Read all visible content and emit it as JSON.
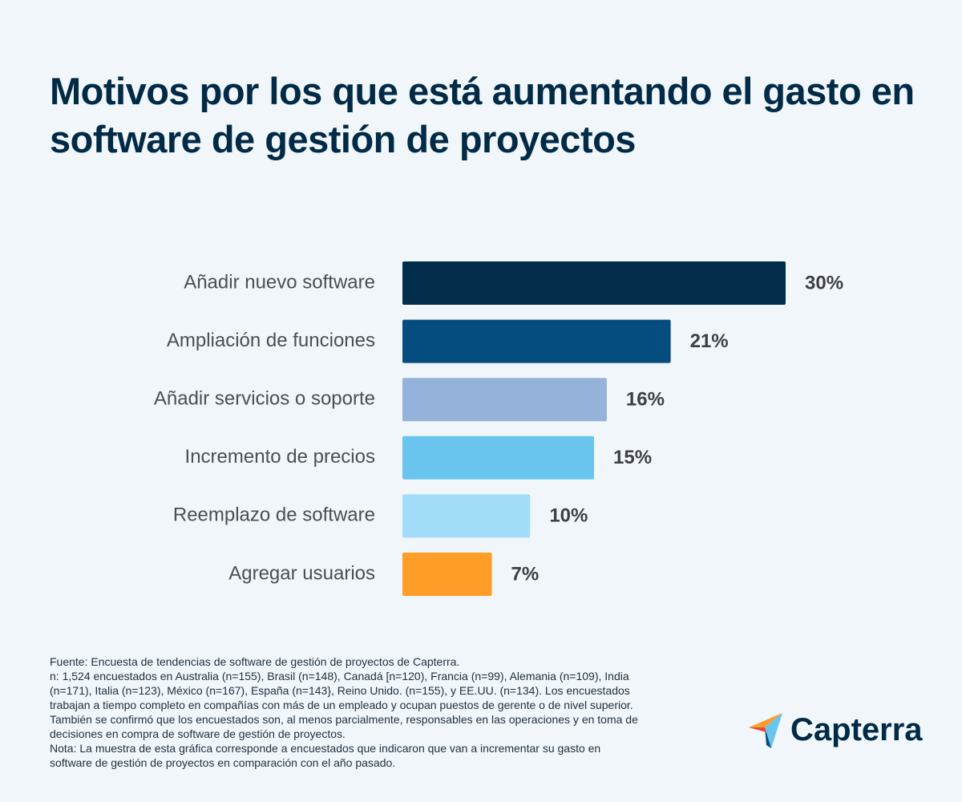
{
  "chart_data": {
    "type": "bar",
    "orientation": "horizontal",
    "title": "Motivos por los que está aumentando el gasto en software de gestión de proyectos",
    "categories": [
      "Añadir nuevo software",
      "Ampliación de funciones",
      "Añadir servicios o soporte",
      "Incremento de precios",
      "Reemplazo de software",
      "Agregar usuarios"
    ],
    "values": [
      30,
      21,
      16,
      15,
      10,
      7
    ],
    "value_labels": [
      "30%",
      "21%",
      "16%",
      "15%",
      "10%",
      "7%"
    ],
    "colors": [
      "#012d4a",
      "#054d7f",
      "#95b3da",
      "#6ac5ee",
      "#a3dcf9",
      "#ff9d28"
    ]
  },
  "footer": {
    "notes": [
      "Fuente: Encuesta de tendencias de software de gestión de proyectos de Capterra.",
      "n: 1,524 encuestados en Australia (n=155), Brasil (n=148), Canadá [n=120), Francia (n=99), Alemania (n=109), India (n=171), Italia (n=123), México (n=167), España (n=143}, Reino Unido. (n=155), y EE.UU. (n=134). Los encuestados trabajan a tiempo completo en compañías con más de un empleado y ocupan puestos de gerente o de nivel superior. También se confirmó que los encuestados son, al menos parcialmente, responsables en las operaciones y en toma de decisiones en compra de software de gestión de proyectos.",
      "Nota: La muestra de esta gráfica corresponde a encuestados que indicaron que van a incrementar su gasto en software de gestión de proyectos en comparación con el año pasado."
    ],
    "logo": "Capterra"
  }
}
